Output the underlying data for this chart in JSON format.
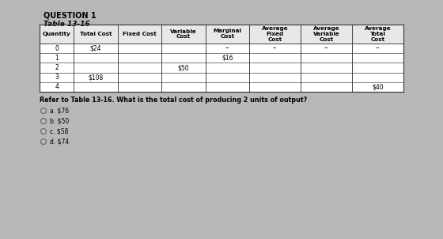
{
  "title": "QUESTION 1",
  "table_title": "Table 13-16",
  "col_headers": [
    "Quantity",
    "Total Cost",
    "Fixed Cost",
    "Variable\nCost",
    "Marginal\nCost",
    "Average\nFixed\nCost",
    "Average\nVariable\nCost",
    "Average\nTotal\nCost"
  ],
  "rows": [
    [
      "0",
      "$24",
      "",
      "",
      "--",
      "--",
      "--",
      "--"
    ],
    [
      "1",
      "",
      "",
      "",
      "$16",
      "",
      "",
      ""
    ],
    [
      "2",
      "",
      "",
      "$50",
      "",
      "",
      "",
      ""
    ],
    [
      "3",
      "$108",
      "",
      "",
      "",
      "",
      "",
      ""
    ],
    [
      "4",
      "",
      "",
      "",
      "",
      "",
      "",
      "$40"
    ]
  ],
  "question": "Refer to Table 13-16. What is the total cost of producing 2 units of output?",
  "choices": [
    "a. $76",
    "b. $50",
    "c. $58",
    "d. $74"
  ],
  "bg_color": "#b8b8b8",
  "table_cell_color": "#ffffff",
  "header_cell_color": "#e8e8e8",
  "text_color": "#000000",
  "border_color": "#444444",
  "title_fontsize": 7,
  "table_title_fontsize": 6.5,
  "header_fontsize": 5.2,
  "cell_fontsize": 5.5,
  "question_fontsize": 5.8,
  "choice_fontsize": 5.5
}
